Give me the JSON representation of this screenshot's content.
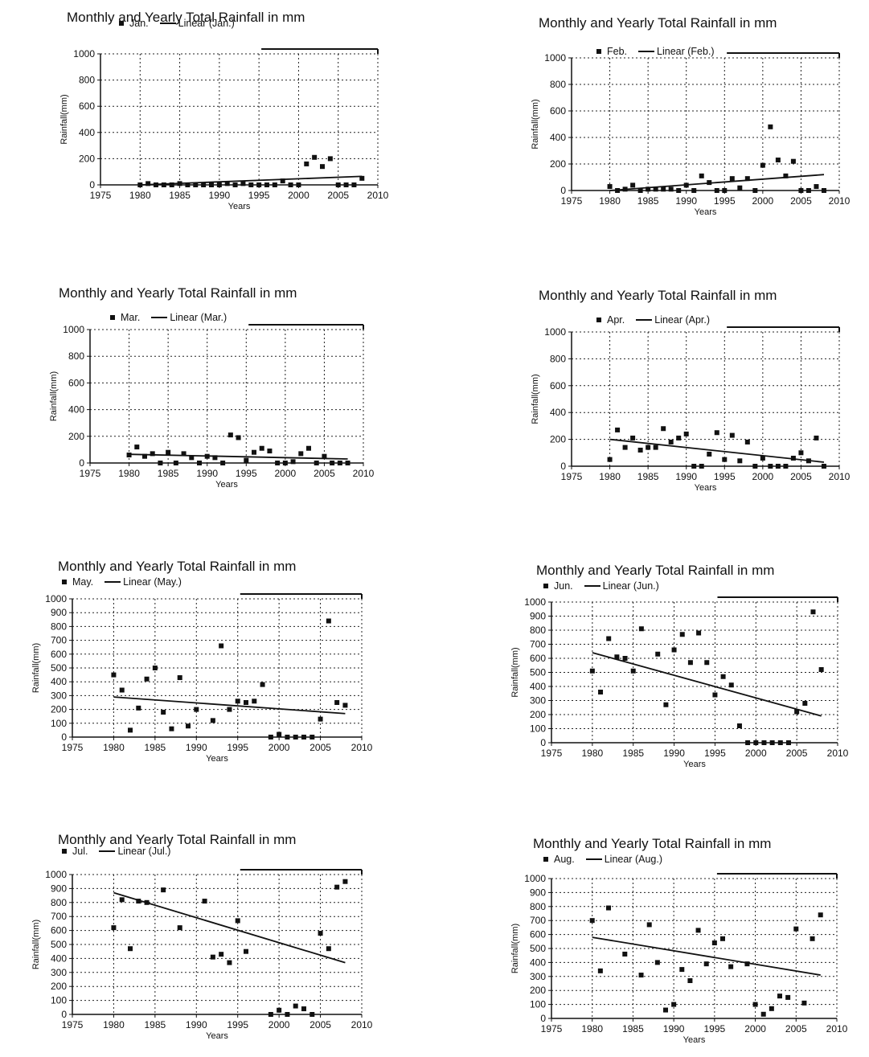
{
  "chart_data": [
    {
      "type": "scatter",
      "title": "Monthly and Yearly Total Rainfall in mm",
      "legend": [
        "Jan.",
        "Linear (Jan.)"
      ],
      "legend_position": "top",
      "xlabel": "Years",
      "ylabel": "Rainfall(mm)",
      "xlim": [
        1975,
        2010
      ],
      "ylim": [
        0,
        1000
      ],
      "xticks": [
        1975,
        1980,
        1985,
        1990,
        1995,
        2000,
        2005,
        2010
      ],
      "yticks": [
        0,
        200,
        400,
        600,
        800,
        1000
      ],
      "grid": true,
      "series": [
        {
          "name": "Jan.",
          "x": [
            1980,
            1981,
            1982,
            1983,
            1984,
            1985,
            1986,
            1987,
            1988,
            1989,
            1990,
            1991,
            1992,
            1993,
            1994,
            1995,
            1996,
            1997,
            1998,
            1999,
            2000,
            2001,
            2002,
            2003,
            2004,
            2005,
            2006,
            2007,
            2008
          ],
          "y": [
            0,
            10,
            0,
            0,
            0,
            10,
            0,
            0,
            0,
            0,
            0,
            10,
            0,
            10,
            0,
            0,
            0,
            0,
            30,
            0,
            0,
            160,
            210,
            140,
            200,
            0,
            0,
            0,
            50
          ]
        },
        {
          "name": "Linear (Jan.)",
          "x": [
            1980,
            2008
          ],
          "y": [
            -5,
            65
          ]
        }
      ]
    },
    {
      "type": "scatter",
      "title": "Monthly and Yearly Total Rainfall in mm",
      "legend": [
        "Feb.",
        "Linear (Feb.)"
      ],
      "legend_position": "top",
      "xlabel": "Years",
      "ylabel": "Rainfall(mm)",
      "xlim": [
        1975,
        2010
      ],
      "ylim": [
        0,
        1000
      ],
      "xticks": [
        1975,
        1980,
        1985,
        1990,
        1995,
        2000,
        2005,
        2010
      ],
      "yticks": [
        0,
        200,
        400,
        600,
        800,
        1000
      ],
      "grid": true,
      "series": [
        {
          "name": "Feb.",
          "x": [
            1980,
            1981,
            1982,
            1983,
            1984,
            1985,
            1986,
            1987,
            1988,
            1989,
            1990,
            1991,
            1992,
            1993,
            1994,
            1995,
            1996,
            1997,
            1998,
            1999,
            2000,
            2001,
            2002,
            2003,
            2004,
            2005,
            2006,
            2007,
            2008
          ],
          "y": [
            30,
            0,
            10,
            40,
            0,
            10,
            10,
            10,
            10,
            0,
            40,
            0,
            110,
            60,
            0,
            0,
            90,
            20,
            90,
            0,
            190,
            480,
            230,
            110,
            220,
            0,
            0,
            30,
            0
          ]
        },
        {
          "name": "Linear (Feb.)",
          "x": [
            1980,
            2008
          ],
          "y": [
            -5,
            120
          ]
        }
      ]
    },
    {
      "type": "scatter",
      "title": "Monthly and Yearly Total Rainfall in mm",
      "legend": [
        "Mar.",
        "Linear (Mar.)"
      ],
      "legend_position": "top",
      "xlabel": "Years",
      "ylabel": "Rainfall(mm)",
      "xlim": [
        1975,
        2010
      ],
      "ylim": [
        0,
        1000
      ],
      "xticks": [
        1975,
        1980,
        1985,
        1990,
        1995,
        2000,
        2005,
        2010
      ],
      "yticks": [
        0,
        200,
        400,
        600,
        800,
        1000
      ],
      "grid": true,
      "series": [
        {
          "name": "Mar.",
          "x": [
            1980,
            1981,
            1982,
            1983,
            1984,
            1985,
            1986,
            1987,
            1988,
            1989,
            1990,
            1991,
            1992,
            1993,
            1994,
            1995,
            1996,
            1997,
            1998,
            1999,
            2000,
            2001,
            2002,
            2003,
            2004,
            2005,
            2006,
            2007,
            2008
          ],
          "y": [
            60,
            120,
            50,
            70,
            0,
            80,
            0,
            70,
            40,
            0,
            50,
            40,
            0,
            210,
            190,
            20,
            80,
            110,
            90,
            0,
            0,
            10,
            70,
            110,
            0,
            50,
            0,
            0,
            0
          ]
        },
        {
          "name": "Linear (Mar.)",
          "x": [
            1980,
            2008
          ],
          "y": [
            65,
            30
          ]
        }
      ]
    },
    {
      "type": "scatter",
      "title": "Monthly and Yearly Total Rainfall in mm",
      "legend": [
        "Apr.",
        "Linear (Apr.)"
      ],
      "legend_position": "top",
      "xlabel": "Years",
      "ylabel": "Rainfall(mm)",
      "xlim": [
        1975,
        2010
      ],
      "ylim": [
        0,
        1000
      ],
      "xticks": [
        1975,
        1980,
        1985,
        1990,
        1995,
        2000,
        2005,
        2010
      ],
      "yticks": [
        0,
        200,
        400,
        600,
        800,
        1000
      ],
      "grid": true,
      "series": [
        {
          "name": "Apr.",
          "x": [
            1980,
            1981,
            1982,
            1983,
            1984,
            1985,
            1986,
            1987,
            1988,
            1989,
            1990,
            1991,
            1992,
            1993,
            1994,
            1995,
            1996,
            1997,
            1998,
            1999,
            2000,
            2001,
            2002,
            2003,
            2004,
            2005,
            2006,
            2007,
            2008
          ],
          "y": [
            50,
            270,
            140,
            210,
            120,
            140,
            140,
            280,
            180,
            210,
            240,
            0,
            0,
            90,
            250,
            50,
            230,
            40,
            180,
            0,
            60,
            0,
            0,
            0,
            60,
            100,
            40,
            210,
            0
          ]
        },
        {
          "name": "Linear (Apr.)",
          "x": [
            1980,
            2008
          ],
          "y": [
            200,
            30
          ]
        }
      ]
    },
    {
      "type": "scatter",
      "title": "Monthly and Yearly Total Rainfall in mm",
      "legend": [
        "May.",
        "Linear (May.)"
      ],
      "legend_position": "top",
      "xlabel": "Years",
      "ylabel": "Rainfall(mm)",
      "xlim": [
        1975,
        2010
      ],
      "ylim": [
        0,
        1000
      ],
      "xticks": [
        1975,
        1980,
        1985,
        1990,
        1995,
        2000,
        2005,
        2010
      ],
      "yticks": [
        0,
        100,
        200,
        300,
        400,
        500,
        600,
        700,
        800,
        900,
        1000
      ],
      "grid": true,
      "series": [
        {
          "name": "May.",
          "x": [
            1980,
            1981,
            1982,
            1983,
            1984,
            1985,
            1986,
            1987,
            1988,
            1989,
            1990,
            1992,
            1993,
            1994,
            1995,
            1996,
            1997,
            1998,
            1999,
            2000,
            2001,
            2002,
            2003,
            2004,
            2005,
            2006,
            2007,
            2008
          ],
          "y": [
            450,
            340,
            50,
            210,
            420,
            500,
            180,
            60,
            430,
            80,
            200,
            120,
            660,
            200,
            260,
            250,
            260,
            380,
            0,
            20,
            0,
            0,
            0,
            0,
            130,
            840,
            250,
            230
          ]
        },
        {
          "name": "Linear (May.)",
          "x": [
            1980,
            2008
          ],
          "y": [
            290,
            170
          ]
        }
      ]
    },
    {
      "type": "scatter",
      "title": "Monthly and Yearly Total Rainfall in mm",
      "legend": [
        "Jun.",
        "Linear (Jun.)"
      ],
      "legend_position": "top",
      "xlabel": "Years",
      "ylabel": "Rainfall(mm)",
      "xlim": [
        1975,
        2010
      ],
      "ylim": [
        0,
        1000
      ],
      "xticks": [
        1975,
        1980,
        1985,
        1990,
        1995,
        2000,
        2005,
        2010
      ],
      "yticks": [
        0,
        100,
        200,
        300,
        400,
        500,
        600,
        700,
        800,
        900,
        1000
      ],
      "grid": true,
      "series": [
        {
          "name": "Jun.",
          "x": [
            1980,
            1981,
            1982,
            1983,
            1984,
            1985,
            1986,
            1988,
            1989,
            1990,
            1991,
            1992,
            1993,
            1994,
            1995,
            1996,
            1997,
            1998,
            1999,
            2000,
            2001,
            2002,
            2003,
            2004,
            2005,
            2006,
            2007,
            2008
          ],
          "y": [
            510,
            360,
            740,
            610,
            600,
            510,
            810,
            630,
            270,
            660,
            770,
            570,
            780,
            570,
            340,
            470,
            410,
            120,
            0,
            0,
            0,
            0,
            0,
            0,
            220,
            280,
            930,
            520
          ]
        },
        {
          "name": "Linear (Jun.)",
          "x": [
            1980,
            2008
          ],
          "y": [
            640,
            190
          ]
        }
      ]
    },
    {
      "type": "scatter",
      "title": "Monthly and Yearly Total Rainfall in mm",
      "legend": [
        "Jul.",
        "Linear (Jul.)"
      ],
      "legend_position": "top",
      "xlabel": "Years",
      "ylabel": "Rainfall(mm)",
      "xlim": [
        1975,
        2010
      ],
      "ylim": [
        0,
        1000
      ],
      "xticks": [
        1975,
        1980,
        1985,
        1990,
        1995,
        2000,
        2005,
        2010
      ],
      "yticks": [
        0,
        100,
        200,
        300,
        400,
        500,
        600,
        700,
        800,
        900,
        1000
      ],
      "grid": true,
      "series": [
        {
          "name": "Jul.",
          "x": [
            1980,
            1981,
            1982,
            1983,
            1984,
            1986,
            1988,
            1991,
            1992,
            1993,
            1994,
            1995,
            1996,
            1999,
            2000,
            2001,
            2002,
            2003,
            2004,
            2005,
            2006,
            2007,
            2008
          ],
          "y": [
            620,
            820,
            470,
            810,
            800,
            890,
            620,
            810,
            410,
            430,
            370,
            670,
            450,
            0,
            30,
            0,
            60,
            40,
            0,
            580,
            470,
            910,
            950
          ]
        },
        {
          "name": "Linear (Jul.)",
          "x": [
            1980,
            2008
          ],
          "y": [
            870,
            370
          ]
        }
      ]
    },
    {
      "type": "scatter",
      "title": "Monthly and Yearly Total Rainfall in mm",
      "legend": [
        "Aug.",
        "Linear (Aug.)"
      ],
      "legend_position": "top",
      "xlabel": "Years",
      "ylabel": "Rainfall(mm)",
      "xlim": [
        1975,
        2010
      ],
      "ylim": [
        0,
        1000
      ],
      "xticks": [
        1975,
        1980,
        1985,
        1990,
        1995,
        2000,
        2005,
        2010
      ],
      "yticks": [
        0,
        100,
        200,
        300,
        400,
        500,
        600,
        700,
        800,
        900,
        1000
      ],
      "grid": true,
      "series": [
        {
          "name": "Aug.",
          "x": [
            1980,
            1981,
            1982,
            1984,
            1986,
            1987,
            1988,
            1989,
            1990,
            1991,
            1992,
            1993,
            1994,
            1995,
            1996,
            1997,
            1999,
            2000,
            2001,
            2002,
            2003,
            2004,
            2005,
            2006,
            2007,
            2008
          ],
          "y": [
            700,
            340,
            790,
            460,
            310,
            670,
            400,
            60,
            100,
            350,
            270,
            630,
            390,
            540,
            570,
            370,
            390,
            100,
            30,
            70,
            160,
            150,
            640,
            110,
            570,
            740
          ]
        },
        {
          "name": "Linear (Aug.)",
          "x": [
            1980,
            2008
          ],
          "y": [
            580,
            310
          ]
        }
      ]
    }
  ]
}
